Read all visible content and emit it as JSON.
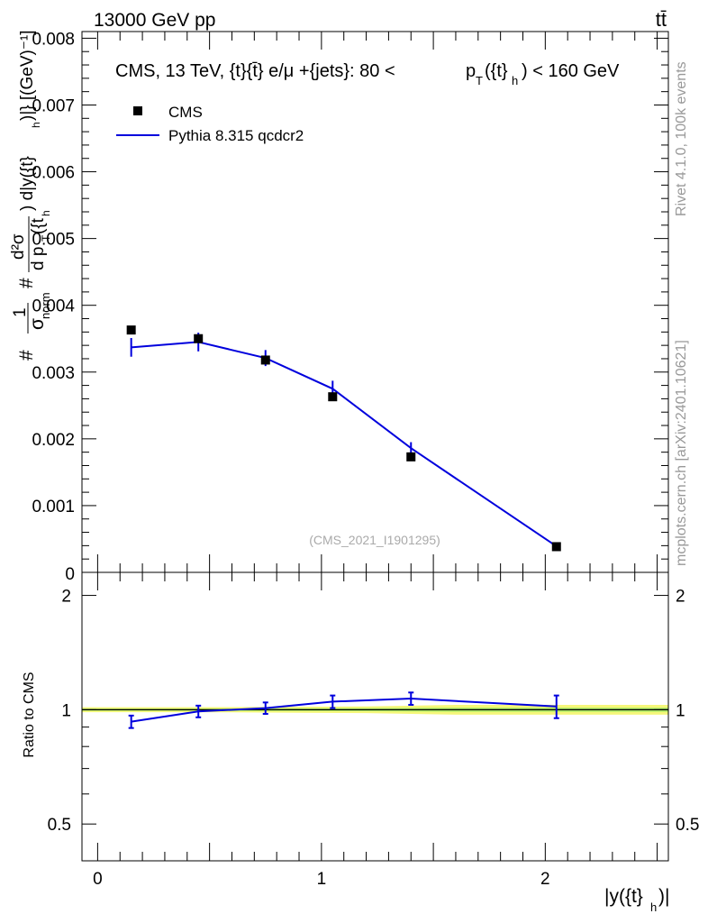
{
  "header": {
    "left": "13000 GeV pp",
    "right": "tt̄"
  },
  "side_labels": {
    "rivet": "Rivet 4.1.0,  100k events",
    "mcplots": "mcplots.cern.ch [arXiv:2401.10621]"
  },
  "chart_data": [
    {
      "type": "scatter",
      "panel": "main",
      "title": "CMS, 13 TeV, {t}{t̄} e/μ +{jets}: 80 <  p_T({t}_h) < 160 GeV",
      "title_prefix": "CMS, 13 TeV, {t}{t̄} e/μ +{jets}: 80 <",
      "title_p": "p",
      "title_T": "T",
      "title_mid": "({t}",
      "title_h": "h",
      "title_suffix": ") < 160 GeV",
      "ylabel_parts": {
        "hash1": "#",
        "one": "1",
        "sigma": "σ",
        "norm": "norm",
        "hash2": "#",
        "d2sigma": "d²σ",
        "dpt": "d p",
        "T": "T",
        "t": "({t",
        "h": "h",
        "mid": ") d|y({t}",
        "h2": "h",
        "unit": ")|} [(GeV)⁻¹]"
      },
      "ylabel": "# 1/σ_norm # d²σ / d p_T({t_h) d|y({t}_h)|} [(GeV)⁻¹]",
      "watermark": "(CMS_2021_I1901295)",
      "legend": [
        {
          "label": "CMS",
          "marker": "square",
          "color": "#000000"
        },
        {
          "label": "Pythia 8.315 qcdcr2",
          "marker": "line",
          "color": "#0000dd"
        }
      ],
      "xlim": [
        -0.07,
        2.55
      ],
      "ylim": [
        0,
        0.0081
      ],
      "yticks": [
        "0.001",
        "0.002",
        "0.003",
        "0.004",
        "0.005",
        "0.006",
        "0.007",
        "0.008"
      ],
      "ytick_values": [
        0.001,
        0.002,
        0.003,
        0.004,
        0.005,
        0.006,
        0.007,
        0.008
      ],
      "y_zero_label": "0",
      "series": [
        {
          "name": "CMS",
          "x": [
            0.15,
            0.45,
            0.75,
            1.05,
            1.4,
            2.05
          ],
          "y": [
            0.00363,
            0.0035,
            0.00318,
            0.00263,
            0.00173,
            0.000385
          ]
        },
        {
          "name": "Pythia 8.315 qcdcr2",
          "x": [
            0.15,
            0.45,
            0.75,
            1.05,
            1.4,
            2.05
          ],
          "y": [
            0.00337,
            0.00345,
            0.00321,
            0.00275,
            0.00186,
            0.00039
          ],
          "yerr": [
            0.00014,
            0.00014,
            0.00012,
            0.00012,
            9e-05,
            2e-05
          ]
        }
      ]
    },
    {
      "type": "line",
      "panel": "ratio",
      "ylabel": "Ratio to CMS",
      "xlabel": "|y({t}_h)|",
      "xlabel_prefix": "|y({t}",
      "xlabel_h": "h",
      "xlabel_suffix": ")|",
      "xlim": [
        -0.07,
        2.55
      ],
      "ylim": [
        0.4,
        2.3
      ],
      "xticks": [
        "0",
        "1",
        "2"
      ],
      "xtick_values": [
        0,
        1,
        2
      ],
      "yticks": [
        "0.5",
        "1",
        "2"
      ],
      "ytick_values": [
        0.5,
        1,
        2
      ],
      "reference_line": 1,
      "band": {
        "x": [
          -0.07,
          0.3,
          0.6,
          0.9,
          1.2,
          1.6,
          2.55
        ],
        "upper": [
          1.015,
          1.015,
          1.016,
          1.018,
          1.02,
          1.03,
          1.03
        ],
        "lower": [
          0.985,
          0.985,
          0.984,
          0.982,
          0.98,
          0.97,
          0.97
        ],
        "inner_upper": [
          1.006,
          1.006,
          1.007,
          1.008,
          1.009,
          1.012,
          1.012
        ],
        "inner_lower": [
          0.994,
          0.994,
          0.993,
          0.992,
          0.991,
          0.988,
          0.988
        ]
      },
      "series": [
        {
          "name": "Pythia 8.315 qcdcr2",
          "x": [
            0.15,
            0.45,
            0.75,
            1.05,
            1.4,
            2.05
          ],
          "y": [
            0.93,
            0.99,
            1.01,
            1.05,
            1.07,
            1.02
          ],
          "yerr": [
            0.035,
            0.035,
            0.035,
            0.04,
            0.04,
            0.07
          ]
        }
      ]
    }
  ]
}
